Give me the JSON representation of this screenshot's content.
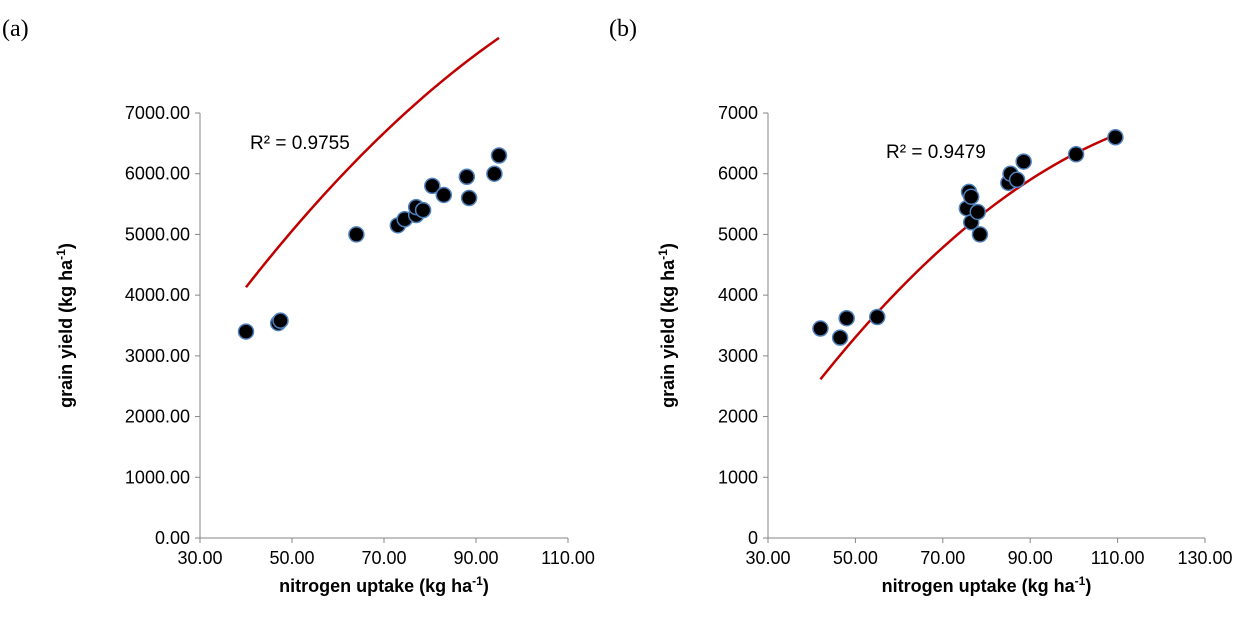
{
  "panels": [
    {
      "label": "(a)"
    },
    {
      "label": "(b)"
    }
  ],
  "chart_data": [
    {
      "type": "scatter",
      "xlabel": "nitrogen uptake (kg ha-1)",
      "xlabel_main": "nitrogen uptake (kg ha",
      "xlabel_sup": "-1",
      "xlabel_end": ")",
      "ylabel": "grain yield (kg ha-1)",
      "ylabel_main": "grain yield (kg ha",
      "ylabel_sup": "-1",
      "ylabel_end": ")",
      "xlim": [
        30,
        110
      ],
      "ylim": [
        0,
        7000
      ],
      "xticks": [
        "30.00",
        "50.00",
        "70.00",
        "90.00",
        "110.00"
      ],
      "yticks": [
        "0.00",
        "1000.00",
        "2000.00",
        "3000.00",
        "4000.00",
        "5000.00",
        "6000.00",
        "7000.00"
      ],
      "annotation": "R² = 0.9755",
      "marker_color": "#000000",
      "marker_edge": "#4f81bd",
      "trend_color": "#c00000",
      "points": [
        [
          40,
          3400
        ],
        [
          47,
          3540
        ],
        [
          47.5,
          3580
        ],
        [
          64,
          5000
        ],
        [
          73,
          5150
        ],
        [
          74.5,
          5250
        ],
        [
          77,
          5320
        ],
        [
          77,
          5450
        ],
        [
          78.5,
          5400
        ],
        [
          80.5,
          5800
        ],
        [
          83,
          5650
        ],
        [
          88,
          5950
        ],
        [
          88.5,
          5600
        ],
        [
          94,
          6000
        ],
        [
          95,
          6300
        ]
      ],
      "trend": {
        "type": "polynomial",
        "x_range": [
          40,
          95
        ],
        "coefficients": [
          -380,
          128.8,
          -0.401
        ]
      }
    },
    {
      "type": "scatter",
      "xlabel": "nitrogen uptake (kg ha-1)",
      "xlabel_main": "nitrogen uptake (kg ha",
      "xlabel_sup": "-1",
      "xlabel_end": ")",
      "ylabel": "grain yield (kg ha-1)",
      "ylabel_main": "grain yield (kg ha",
      "ylabel_sup": "-1",
      "ylabel_end": ")",
      "xlim": [
        30,
        130
      ],
      "ylim": [
        0,
        7000
      ],
      "xticks": [
        "30.00",
        "50.00",
        "70.00",
        "90.00",
        "110.00",
        "130.00"
      ],
      "yticks": [
        "0",
        "1000",
        "2000",
        "3000",
        "4000",
        "5000",
        "6000",
        "7000"
      ],
      "annotation": "R² = 0.9479",
      "marker_color": "#000000",
      "marker_edge": "#4f81bd",
      "trend_color": "#c00000",
      "points": [
        [
          42,
          3450
        ],
        [
          46.5,
          3300
        ],
        [
          48,
          3620
        ],
        [
          55,
          3640
        ],
        [
          75.5,
          5430
        ],
        [
          76,
          5700
        ],
        [
          76.5,
          5620
        ],
        [
          76.5,
          5200
        ],
        [
          78,
          5370
        ],
        [
          78.5,
          5000
        ],
        [
          85,
          5850
        ],
        [
          85.5,
          6000
        ],
        [
          87,
          5900
        ],
        [
          88.5,
          6200
        ],
        [
          100.5,
          6320
        ],
        [
          109.5,
          6600
        ]
      ],
      "trend": {
        "type": "polynomial",
        "x_range": [
          42,
          110
        ],
        "coefficients": [
          -1980,
          128.46,
          -0.4545
        ]
      }
    }
  ]
}
